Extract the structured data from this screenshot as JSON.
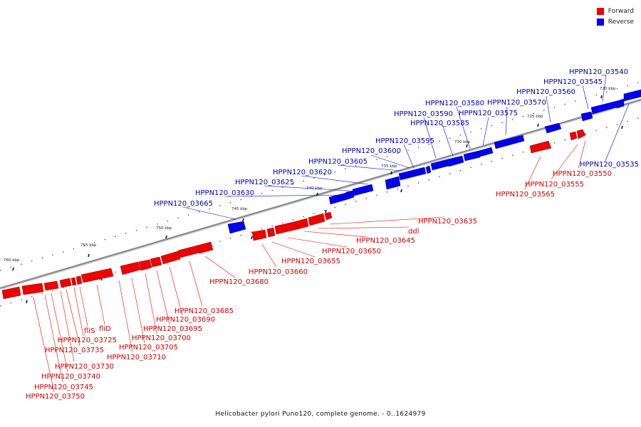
{
  "legend": {
    "forward": {
      "label": "Forward",
      "color": "#ee0000"
    },
    "reverse": {
      "label": "Reverse",
      "color": "#0000ee"
    }
  },
  "caption": "Helicobacter pylori Puno120, complete genome. - 0..1624979",
  "colors": {
    "forward": "#ee0000",
    "forward_label": "#cc0000",
    "reverse": "#0000ee",
    "reverse_label": "#0000aa",
    "backbone": "#999999"
  },
  "ticks": [
    "720 kbp",
    "725 kbp",
    "730 kbp",
    "735 kbp",
    "740 kbp",
    "745 kbp",
    "750 kbp",
    "755 kbp",
    "760 kbp"
  ],
  "reverse_genes": [
    "HPPN120_03540",
    "HPPN120_03545",
    "HPPN120_03560",
    "HPPN120_03570",
    "HPPN120_03580",
    "HPPN120_03575",
    "HPPN120_03590",
    "HPPN120_03585",
    "HPPN120_03595",
    "HPPN120_03600",
    "HPPN120_03605",
    "HPPN120_03620",
    "HPPN120_03625",
    "HPPN120_03630",
    "HPPN120_03665",
    "HPPN120_03535"
  ],
  "forward_genes": [
    "HPPN120_03550",
    "HPPN120_03555",
    "HPPN120_03565",
    "HPPN120_03635",
    "ddl",
    "HPPN120_03645",
    "HPPN120_03650",
    "HPPN120_03655",
    "HPPN120_03660",
    "HPPN120_03680",
    "HPPN120_03685",
    "HPPN120_03690",
    "HPPN120_03695",
    "HPPN120_03700",
    "HPPN120_03705",
    "HPPN120_03710",
    "fliD",
    "fliS",
    "HPPN120_03725",
    "HPPN120_03735",
    "HPPN120_03730",
    "HPPN120_03740",
    "HPPN120_03745",
    "HPPN120_03750"
  ]
}
